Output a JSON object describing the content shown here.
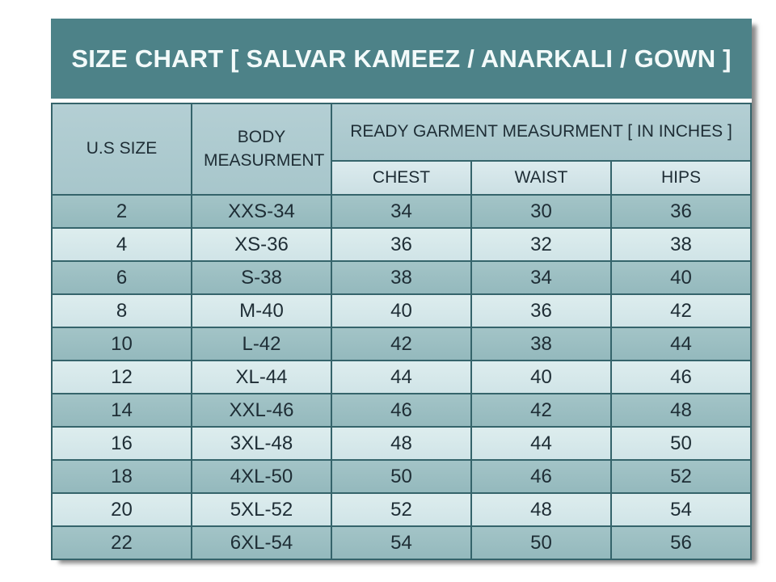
{
  "chart_data": {
    "type": "table",
    "title": "SIZE CHART [ SALVAR KAMEEZ / ANARKALI / GOWN ]",
    "header": {
      "us_size": "U.S SIZE",
      "body_measurment": "BODY MEASURMENT",
      "ready_garment_group": "READY GARMENT MEASURMENT [ IN INCHES ]",
      "sub_columns": [
        "CHEST",
        "WAIST",
        "HIPS"
      ]
    },
    "columns": [
      "U.S SIZE",
      "BODY MEASURMENT",
      "CHEST",
      "WAIST",
      "HIPS"
    ],
    "rows": [
      [
        "2",
        "XXS-34",
        "34",
        "30",
        "36"
      ],
      [
        "4",
        "XS-36",
        "36",
        "32",
        "38"
      ],
      [
        "6",
        "S-38",
        "38",
        "34",
        "40"
      ],
      [
        "8",
        "M-40",
        "40",
        "36",
        "42"
      ],
      [
        "10",
        "L-42",
        "42",
        "38",
        "44"
      ],
      [
        "12",
        "XL-44",
        "44",
        "40",
        "46"
      ],
      [
        "14",
        "XXL-46",
        "46",
        "42",
        "48"
      ],
      [
        "16",
        "3XL-48",
        "48",
        "44",
        "50"
      ],
      [
        "18",
        "4XL-50",
        "50",
        "46",
        "52"
      ],
      [
        "20",
        "5XL-52",
        "52",
        "48",
        "54"
      ],
      [
        "22",
        "6XL-54",
        "54",
        "50",
        "56"
      ]
    ],
    "layout": {
      "row_striping": "alternating, first data row dark",
      "legend": "none",
      "grid": "on"
    },
    "colors": {
      "title_bg": "#4d8288",
      "title_text": "#f3fafa",
      "header_bg": "#adc9ce",
      "subheader_bg": "#d2e4e8",
      "row_dark_bg": "#9bbec1",
      "row_light_bg": "#d7e9ea",
      "border": "#35646b",
      "cell_text": "#1e2d35",
      "page_bg": "#ffffff"
    }
  }
}
